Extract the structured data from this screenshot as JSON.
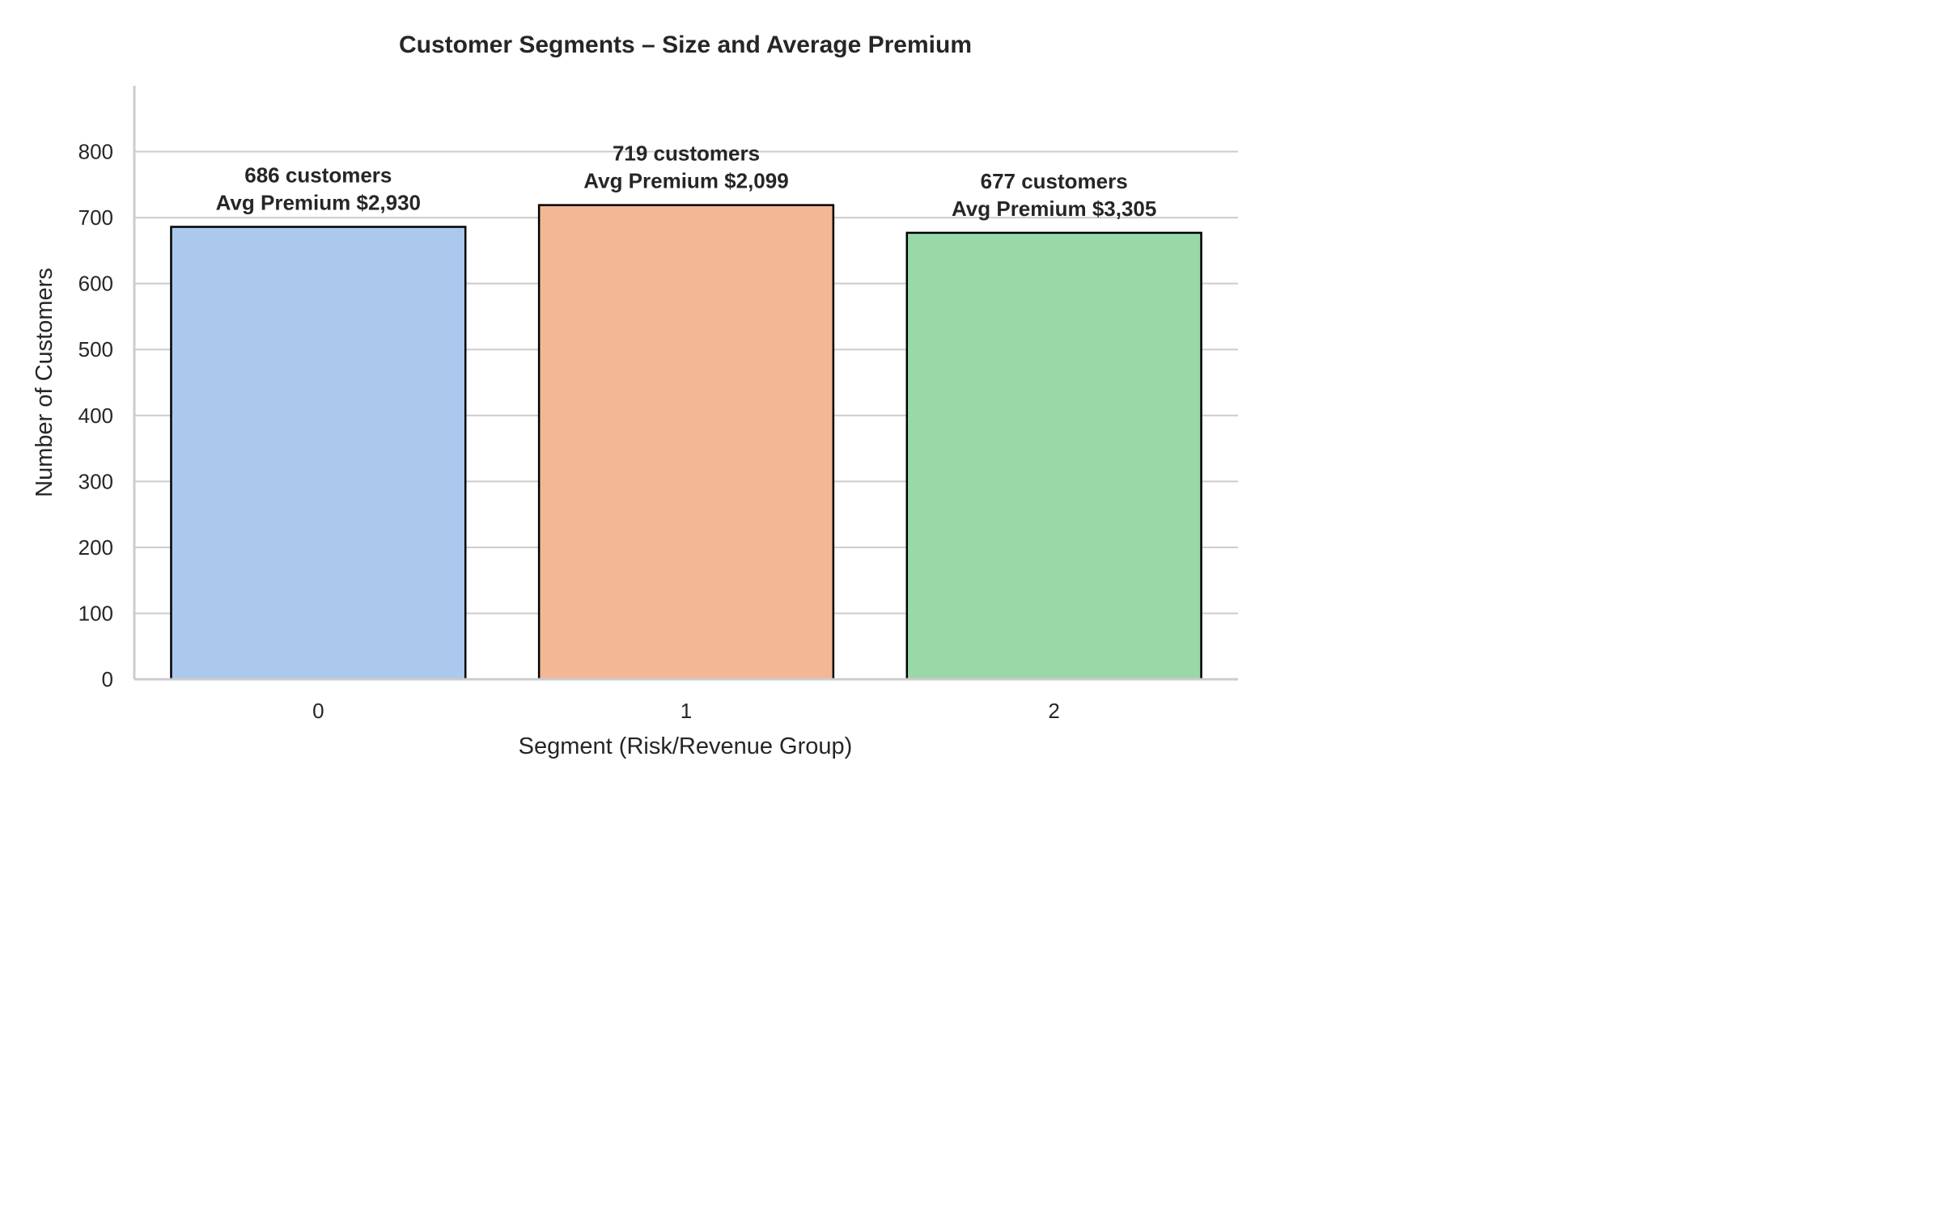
{
  "chart_data": {
    "type": "bar",
    "title": "Customer Segments – Size and Average Premium",
    "xlabel": "Segment (Risk/Revenue Group)",
    "ylabel": "Number of Customers",
    "categories": [
      "0",
      "1",
      "2"
    ],
    "values": [
      686,
      719,
      677
    ],
    "avg_premium": [
      2930,
      2099,
      3305
    ],
    "data_labels": [
      [
        "686 customers",
        "Avg Premium $2,930"
      ],
      [
        "719 customers",
        "Avg Premium $2,099"
      ],
      [
        "677 customers",
        "Avg Premium $3,305"
      ]
    ],
    "colors": [
      "#abc9ed",
      "#f1b893",
      "#99d8a7"
    ],
    "ylim": [
      0,
      900
    ],
    "yticks": [
      0,
      100,
      200,
      300,
      400,
      500,
      600,
      700,
      800
    ],
    "grid": "horizontal"
  }
}
